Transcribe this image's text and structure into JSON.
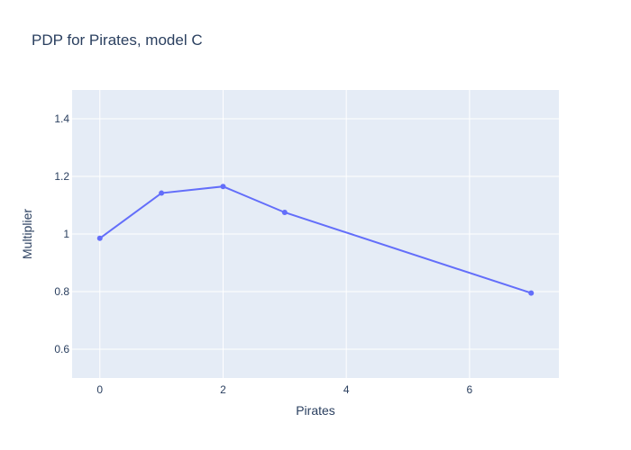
{
  "chart_data": {
    "type": "line",
    "title": "PDP for Pirates, model C",
    "xlabel": "Pirates",
    "ylabel": "Multiplier",
    "xlim": [
      -0.45,
      7.45
    ],
    "ylim": [
      0.5,
      1.5
    ],
    "xticks": [
      0,
      2,
      4,
      6
    ],
    "xtick_labels": [
      "0",
      "2",
      "4",
      "6"
    ],
    "yticks": [
      0.6,
      0.8,
      1.0,
      1.2,
      1.4
    ],
    "ytick_labels": [
      "0.6",
      "0.8",
      "1",
      "1.2",
      "1.4"
    ],
    "grid": true,
    "legend": "none",
    "series": [
      {
        "x": [
          0,
          1,
          2,
          3,
          7
        ],
        "values": [
          0.985,
          1.142,
          1.165,
          1.075,
          0.795
        ],
        "color": "#636efa",
        "mode": "lines+markers"
      }
    ]
  },
  "colors": {
    "plot_background": "#e5ecf6",
    "grid": "#ffffff",
    "text": "#2a3f5f",
    "line": "#636efa"
  }
}
